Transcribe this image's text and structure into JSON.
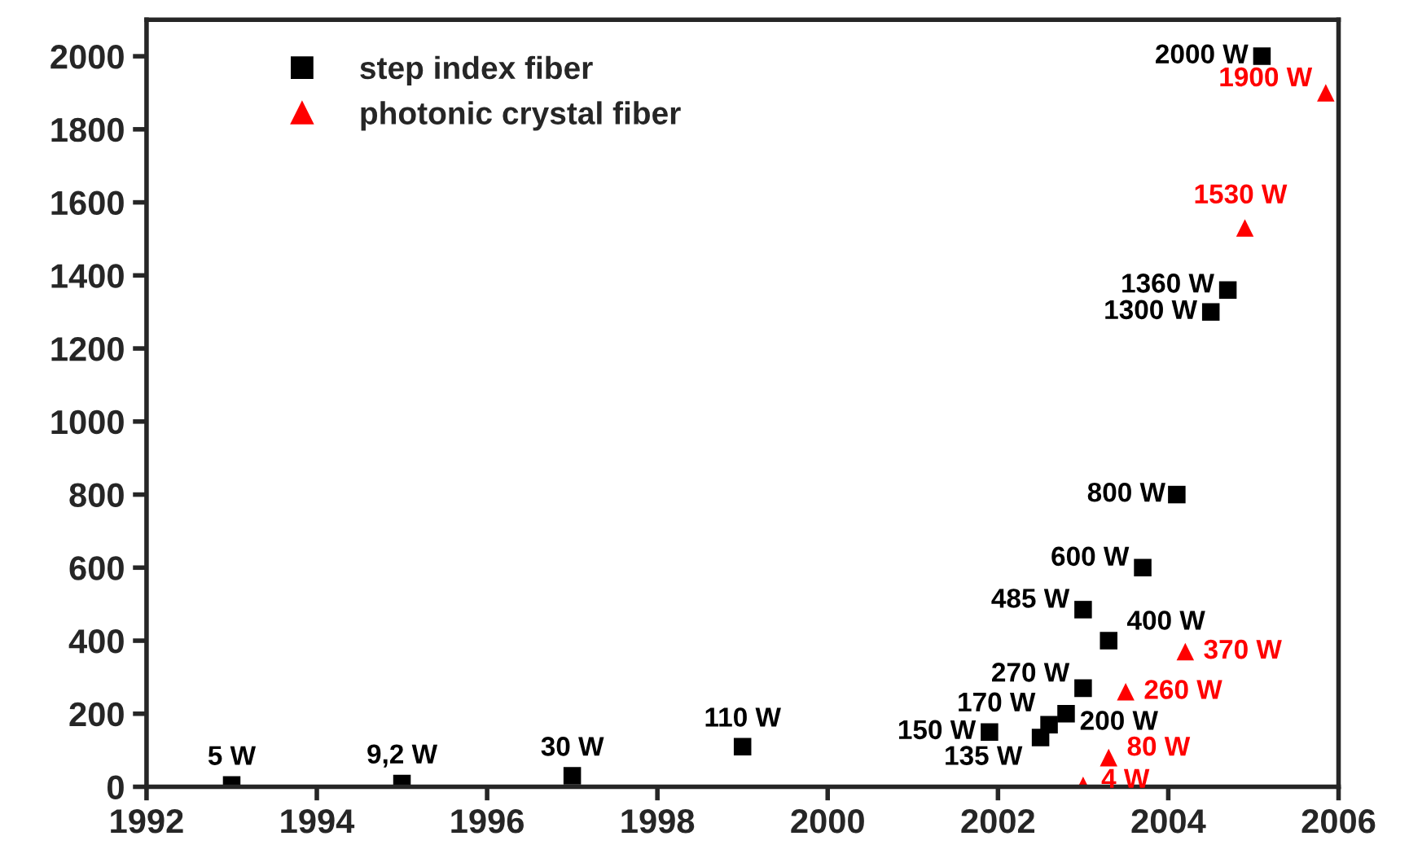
{
  "chart_data": {
    "type": "scatter",
    "xlim": [
      1992,
      2006
    ],
    "xticks": [
      1992,
      1994,
      1996,
      1998,
      2000,
      2002,
      2004,
      2006
    ],
    "ylim": [
      0,
      2100
    ],
    "yticks": [
      0,
      200,
      400,
      600,
      800,
      1000,
      1200,
      1400,
      1600,
      1800,
      2000
    ],
    "grid": false,
    "legend": "top left",
    "series": [
      {
        "name": "step index fiber",
        "color": "#000000",
        "marker": "square",
        "x": [
          1993.0,
          1995.0,
          1997.0,
          1999.0,
          2001.9,
          2002.5,
          2002.6,
          2002.8,
          2003.0,
          2003.0,
          2003.3,
          2003.7,
          2004.1,
          2004.5,
          2004.7,
          2005.1
        ],
        "values": [
          5,
          9.2,
          30,
          110,
          150,
          135,
          170,
          200,
          270,
          485,
          400,
          600,
          800,
          1300,
          1360,
          2000
        ],
        "value_labels": [
          "5 W",
          "9,2 W",
          "30 W",
          "110 W",
          "150 W",
          "135 W",
          "170 W",
          "200 W",
          "270 W",
          "485 W",
          "400 W",
          "600 W",
          "800 W",
          "1300 W",
          "1360 W",
          "2000 W"
        ]
      },
      {
        "name": "photonic crystal fiber",
        "color": "#ff0000",
        "marker": "triangle",
        "x": [
          2003.0,
          2003.3,
          2003.5,
          2004.2,
          2004.9,
          2005.85
        ],
        "values": [
          4,
          80,
          260,
          370,
          1530,
          1900
        ],
        "value_labels": [
          "4 W",
          "80 W",
          "260 W",
          "370 W",
          "1530 W",
          "1900 W"
        ]
      }
    ]
  }
}
